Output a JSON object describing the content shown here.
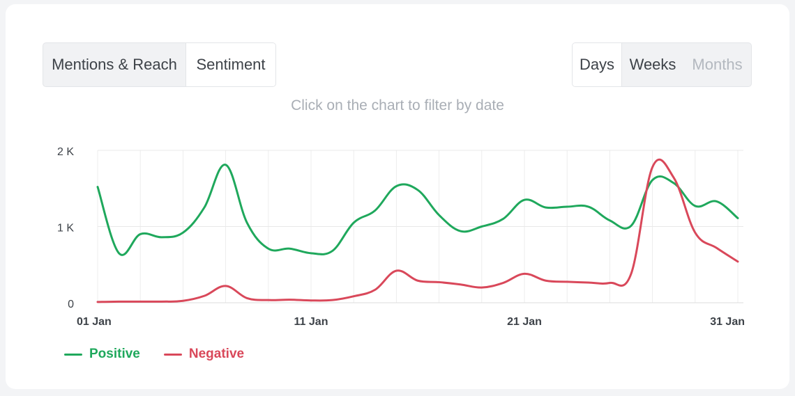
{
  "toolbar": {
    "metric_tabs": [
      {
        "label": "Mentions & Reach",
        "active": false
      },
      {
        "label": "Sentiment",
        "active": true
      }
    ],
    "range_tabs": [
      {
        "label": "Days",
        "active": true
      },
      {
        "label": "Weeks",
        "active": false
      },
      {
        "label": "Months",
        "active": false,
        "disabled": true
      }
    ]
  },
  "hint": "Click on the chart to filter by date",
  "chart_data": {
    "type": "line",
    "x": [
      "01 Jan",
      "02 Jan",
      "03 Jan",
      "04 Jan",
      "05 Jan",
      "06 Jan",
      "07 Jan",
      "08 Jan",
      "09 Jan",
      "10 Jan",
      "11 Jan",
      "12 Jan",
      "13 Jan",
      "14 Jan",
      "15 Jan",
      "16 Jan",
      "17 Jan",
      "18 Jan",
      "19 Jan",
      "20 Jan",
      "21 Jan",
      "22 Jan",
      "23 Jan",
      "24 Jan",
      "25 Jan",
      "26 Jan",
      "27 Jan",
      "28 Jan",
      "29 Jan",
      "30 Jan",
      "31 Jan"
    ],
    "x_tick_labels": [
      "01 Jan",
      "11 Jan",
      "21 Jan",
      "31 Jan"
    ],
    "x_tick_indices": [
      0,
      10,
      20,
      30
    ],
    "y_tick_labels": [
      "0",
      "1 K",
      "2 K"
    ],
    "y_tick_values": [
      0,
      1000,
      2000
    ],
    "ylim": [
      0,
      2000
    ],
    "grid": true,
    "legend_position": "bottom-left",
    "series": [
      {
        "name": "Positive",
        "color": "#1fa85c",
        "values": [
          1520,
          650,
          900,
          860,
          920,
          1250,
          1810,
          1050,
          710,
          710,
          650,
          680,
          1050,
          1210,
          1530,
          1480,
          1150,
          940,
          1000,
          1100,
          1350,
          1250,
          1260,
          1260,
          1080,
          1010,
          1610,
          1570,
          1270,
          1330,
          1110
        ]
      },
      {
        "name": "Negative",
        "color": "#d9485a",
        "values": [
          10,
          15,
          15,
          15,
          25,
          90,
          220,
          60,
          35,
          40,
          30,
          35,
          85,
          170,
          420,
          290,
          270,
          240,
          200,
          260,
          380,
          290,
          275,
          265,
          260,
          380,
          1780,
          1640,
          920,
          720,
          540
        ]
      }
    ]
  }
}
